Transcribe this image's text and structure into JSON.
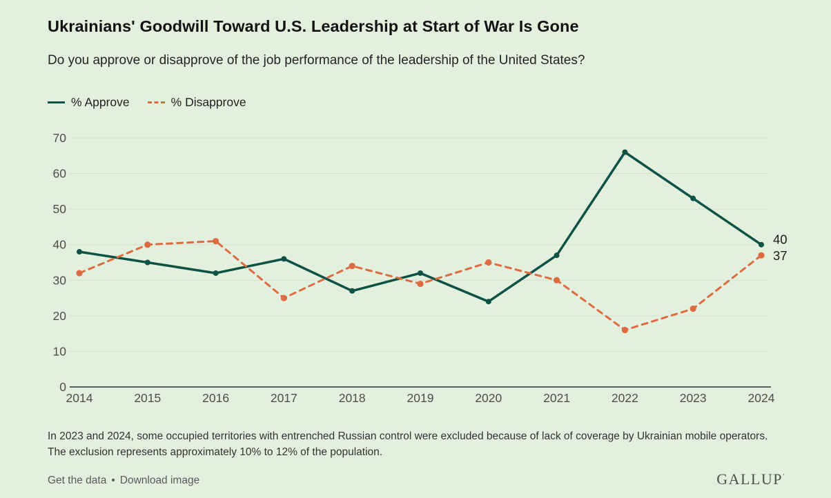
{
  "header": {
    "title": "Ukrainians' Goodwill Toward U.S. Leadership at Start of War Is Gone",
    "subtitle": "Do you approve or disapprove of the job performance of the leadership of the United States?"
  },
  "chart_data": {
    "type": "line",
    "x": [
      2014,
      2015,
      2016,
      2017,
      2018,
      2019,
      2020,
      2021,
      2022,
      2023,
      2024
    ],
    "series": [
      {
        "name": "% Approve",
        "values": [
          38,
          35,
          32,
          36,
          27,
          32,
          24,
          37,
          66,
          53,
          40
        ],
        "color": "#0d5245",
        "line_style": "solid",
        "end_label": "40"
      },
      {
        "name": "% Disapprove",
        "values": [
          32,
          40,
          41,
          25,
          34,
          29,
          35,
          30,
          16,
          22,
          37
        ],
        "color": "#dd6b41",
        "line_style": "dashed",
        "end_label": "37"
      }
    ],
    "ylim": [
      0,
      70
    ],
    "yticks": [
      0,
      10,
      20,
      30,
      40,
      50,
      60,
      70
    ],
    "grid": "horizontal",
    "legend_position": "top-left",
    "title": "Ukrainians' Goodwill Toward U.S. Leadership at Start of War Is Gone",
    "xlabel": "",
    "ylabel": ""
  },
  "colors": {
    "background": "#e4f0de",
    "gridline": "#d2e1cc",
    "axis_line": "#2e2e2e",
    "tick_label": "#4d4d4d",
    "end_label": "#1d1d1d",
    "approve": "#0d5245",
    "disapprove": "#dd6b41"
  },
  "footnote": "In 2023 and 2024, some occupied territories with entrenched Russian control were excluded because of lack of coverage by Ukrainian mobile operators. The exclusion represents approximately 10% to 12% of the population.",
  "footer": {
    "get_data_label": "Get the data",
    "separator": "•",
    "download_label": "Download image",
    "brand": "GALLUP",
    "brand_mark": "’"
  }
}
